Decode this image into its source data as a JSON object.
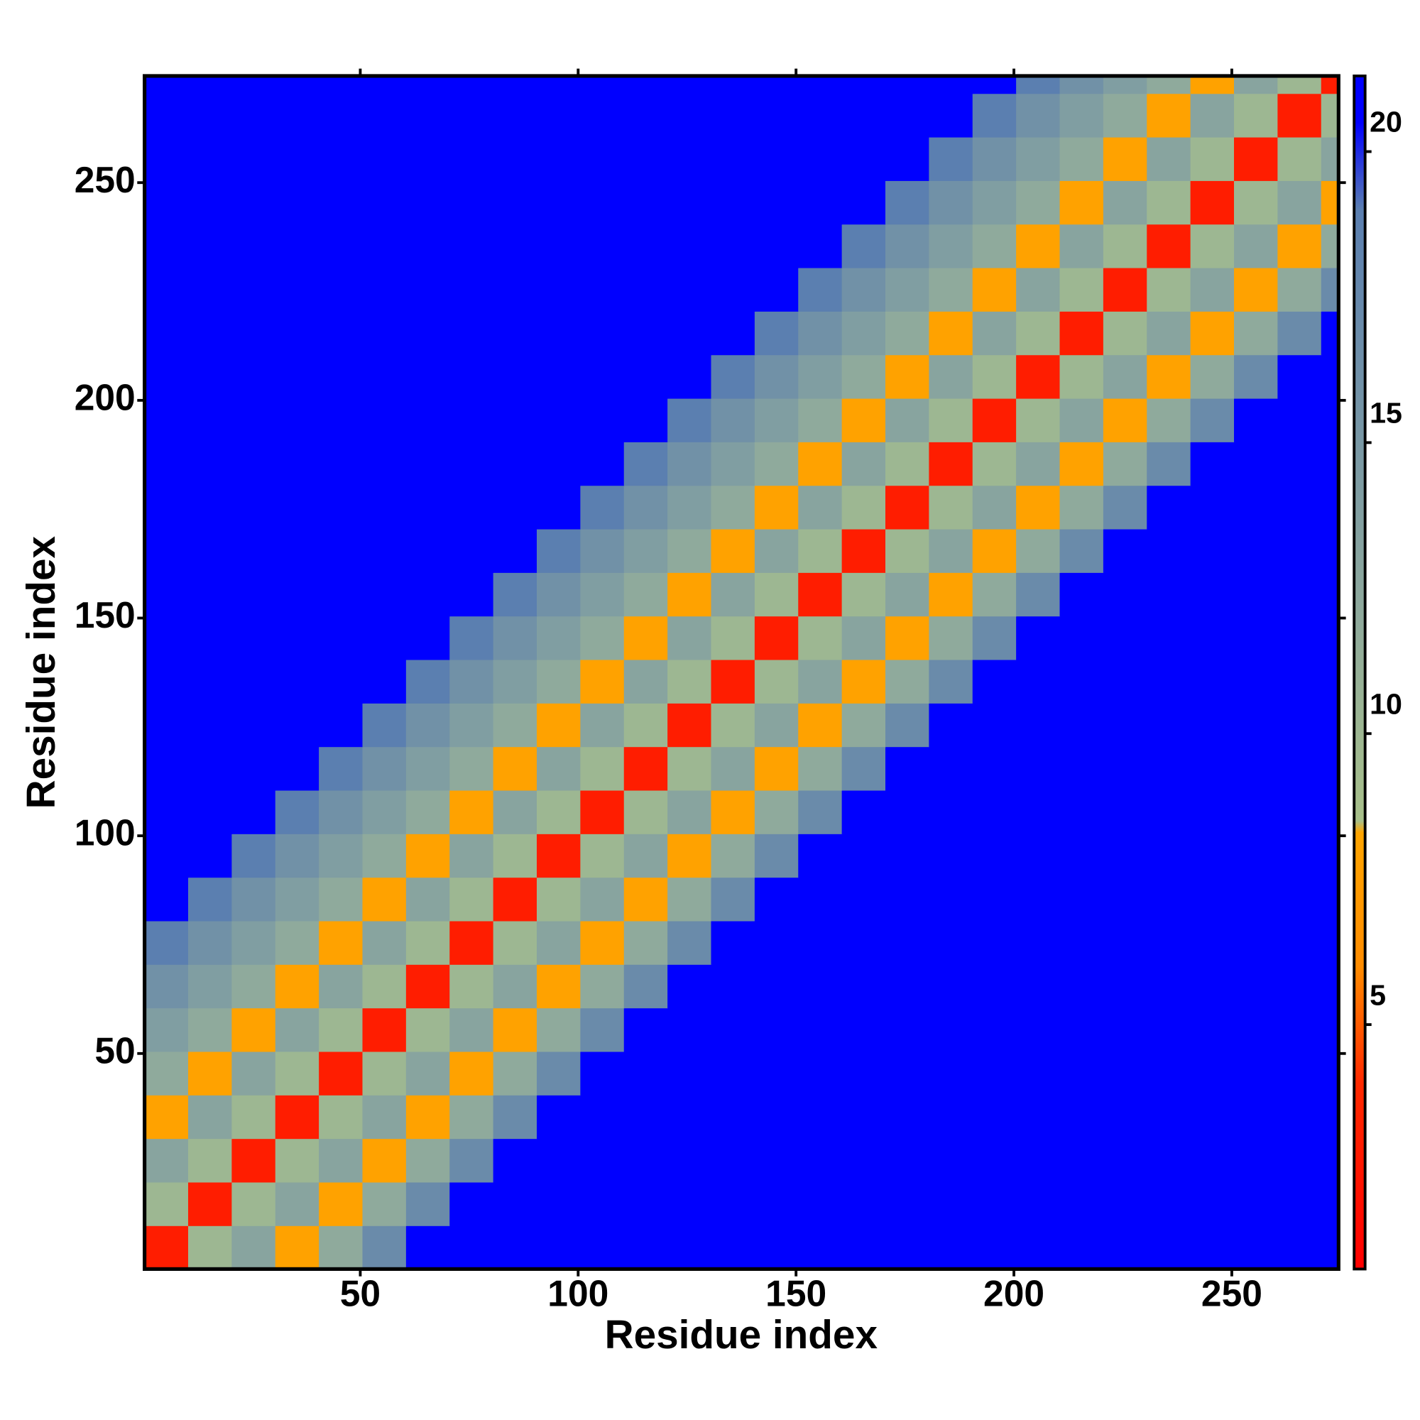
{
  "chart_data": {
    "type": "heatmap",
    "x_label": "Residue index",
    "y_label": "Residue index",
    "x_edges": [
      0.5,
      10.5,
      20.5,
      30.5,
      40.5,
      50.5,
      60.5,
      70.5,
      80.5,
      90.5,
      100.5,
      110.5,
      120.5,
      130.5,
      140.5,
      150.5,
      160.5,
      170.5,
      180.5,
      190.5,
      200.5,
      210.5,
      220.5,
      230.5,
      240.5,
      250.5,
      260.5,
      270.5,
      274.5
    ],
    "y_edges": [
      0.5,
      10.5,
      20.5,
      30.5,
      40.5,
      50.5,
      60.5,
      70.5,
      80.5,
      90.5,
      100.5,
      110.5,
      120.5,
      130.5,
      140.5,
      150.5,
      160.5,
      170.5,
      180.5,
      190.5,
      200.5,
      210.5,
      220.5,
      230.5,
      240.5,
      250.5,
      260.5,
      270.5,
      274.5
    ],
    "xlim": [
      0.5,
      274.5
    ],
    "ylim": [
      0.5,
      274.5
    ],
    "xticks": [
      50,
      100,
      150,
      200,
      250
    ],
    "yticks": [
      50,
      100,
      150,
      200,
      250
    ],
    "zlim": [
      0.8,
      21.3
    ],
    "zticks": [
      5,
      10,
      15,
      20
    ],
    "colorscale": [
      [
        0.8,
        "#ff0000"
      ],
      [
        4,
        "#ff2a00"
      ],
      [
        6,
        "#ff8c00"
      ],
      [
        8.3,
        "#ffa500"
      ],
      [
        8.5,
        "#a8c08a"
      ],
      [
        12,
        "#8faa9c"
      ],
      [
        19,
        "#5b7fb0"
      ],
      [
        20.5,
        "#0000ff"
      ],
      [
        21.3,
        "#0000ff"
      ]
    ],
    "z": [
      [
        3,
        10,
        13,
        8,
        12,
        17,
        21,
        21,
        21,
        21,
        21,
        21,
        21,
        21,
        21,
        21,
        21,
        21,
        21,
        21,
        21,
        21,
        21,
        21,
        21,
        21,
        21,
        21
      ],
      [
        10,
        3,
        10,
        13,
        8,
        12,
        17,
        21,
        21,
        21,
        21,
        21,
        21,
        21,
        21,
        21,
        21,
        21,
        21,
        21,
        21,
        21,
        21,
        21,
        21,
        21,
        21,
        21
      ],
      [
        13,
        10,
        3,
        10,
        13,
        8,
        12,
        17,
        21,
        21,
        21,
        21,
        21,
        21,
        21,
        21,
        21,
        21,
        21,
        21,
        21,
        21,
        21,
        21,
        21,
        21,
        21,
        21
      ],
      [
        8,
        13,
        10,
        3,
        10,
        13,
        8,
        12,
        17,
        21,
        21,
        21,
        21,
        21,
        21,
        21,
        21,
        21,
        21,
        21,
        21,
        21,
        21,
        21,
        21,
        21,
        21,
        21
      ],
      [
        12,
        8,
        13,
        10,
        3,
        10,
        13,
        8,
        12,
        17,
        21,
        21,
        21,
        21,
        21,
        21,
        21,
        21,
        21,
        21,
        21,
        21,
        21,
        21,
        21,
        21,
        21,
        21
      ],
      [
        14,
        12,
        8,
        13,
        10,
        3,
        10,
        13,
        8,
        12,
        17,
        21,
        21,
        21,
        21,
        21,
        21,
        21,
        21,
        21,
        21,
        21,
        21,
        21,
        21,
        21,
        21,
        21
      ],
      [
        16,
        14,
        12,
        8,
        13,
        10,
        3,
        10,
        13,
        8,
        12,
        17,
        21,
        21,
        21,
        21,
        21,
        21,
        21,
        21,
        21,
        21,
        21,
        21,
        21,
        21,
        21,
        21
      ],
      [
        19,
        16,
        14,
        12,
        8,
        13,
        10,
        3,
        10,
        13,
        8,
        12,
        17,
        21,
        21,
        21,
        21,
        21,
        21,
        21,
        21,
        21,
        21,
        21,
        21,
        21,
        21,
        21
      ],
      [
        21,
        19,
        16,
        14,
        12,
        8,
        13,
        10,
        3,
        10,
        13,
        8,
        12,
        17,
        21,
        21,
        21,
        21,
        21,
        21,
        21,
        21,
        21,
        21,
        21,
        21,
        21,
        21
      ],
      [
        21,
        21,
        19,
        16,
        14,
        12,
        8,
        13,
        10,
        3,
        10,
        13,
        8,
        12,
        17,
        21,
        21,
        21,
        21,
        21,
        21,
        21,
        21,
        21,
        21,
        21,
        21,
        21
      ],
      [
        21,
        21,
        21,
        19,
        16,
        14,
        12,
        8,
        13,
        10,
        3,
        10,
        13,
        8,
        12,
        17,
        21,
        21,
        21,
        21,
        21,
        21,
        21,
        21,
        21,
        21,
        21,
        21
      ],
      [
        21,
        21,
        21,
        21,
        19,
        16,
        14,
        12,
        8,
        13,
        10,
        3,
        10,
        13,
        8,
        12,
        17,
        21,
        21,
        21,
        21,
        21,
        21,
        21,
        21,
        21,
        21,
        21
      ],
      [
        21,
        21,
        21,
        21,
        21,
        19,
        16,
        14,
        12,
        8,
        13,
        10,
        3,
        10,
        13,
        8,
        12,
        17,
        21,
        21,
        21,
        21,
        21,
        21,
        21,
        21,
        21,
        21
      ],
      [
        21,
        21,
        21,
        21,
        21,
        21,
        19,
        16,
        14,
        12,
        8,
        13,
        10,
        3,
        10,
        13,
        8,
        12,
        17,
        21,
        21,
        21,
        21,
        21,
        21,
        21,
        21,
        21
      ],
      [
        21,
        21,
        21,
        21,
        21,
        21,
        21,
        19,
        16,
        14,
        12,
        8,
        13,
        10,
        3,
        10,
        13,
        8,
        12,
        17,
        21,
        21,
        21,
        21,
        21,
        21,
        21,
        21
      ],
      [
        21,
        21,
        21,
        21,
        21,
        21,
        21,
        21,
        19,
        16,
        14,
        12,
        8,
        13,
        10,
        3,
        10,
        13,
        8,
        12,
        17,
        21,
        21,
        21,
        21,
        21,
        21,
        21
      ],
      [
        21,
        21,
        21,
        21,
        21,
        21,
        21,
        21,
        21,
        19,
        16,
        14,
        12,
        8,
        13,
        10,
        3,
        10,
        13,
        8,
        12,
        17,
        21,
        21,
        21,
        21,
        21,
        21
      ],
      [
        21,
        21,
        21,
        21,
        21,
        21,
        21,
        21,
        21,
        21,
        19,
        16,
        14,
        12,
        8,
        13,
        10,
        3,
        10,
        13,
        8,
        12,
        17,
        21,
        21,
        21,
        21,
        21
      ],
      [
        21,
        21,
        21,
        21,
        21,
        21,
        21,
        21,
        21,
        21,
        21,
        19,
        16,
        14,
        12,
        8,
        13,
        10,
        3,
        10,
        13,
        8,
        12,
        17,
        21,
        21,
        21,
        21
      ],
      [
        21,
        21,
        21,
        21,
        21,
        21,
        21,
        21,
        21,
        21,
        21,
        21,
        19,
        16,
        14,
        12,
        8,
        13,
        10,
        3,
        10,
        13,
        8,
        12,
        17,
        21,
        21,
        21
      ],
      [
        21,
        21,
        21,
        21,
        21,
        21,
        21,
        21,
        21,
        21,
        21,
        21,
        21,
        19,
        16,
        14,
        12,
        8,
        13,
        10,
        3,
        10,
        13,
        8,
        12,
        17,
        21,
        21
      ],
      [
        21,
        21,
        21,
        21,
        21,
        21,
        21,
        21,
        21,
        21,
        21,
        21,
        21,
        21,
        19,
        16,
        14,
        12,
        8,
        13,
        10,
        3,
        10,
        13,
        8,
        12,
        17,
        21
      ],
      [
        21,
        21,
        21,
        21,
        21,
        21,
        21,
        21,
        21,
        21,
        21,
        21,
        21,
        21,
        21,
        19,
        16,
        14,
        12,
        8,
        13,
        10,
        3,
        10,
        13,
        8,
        12,
        17
      ],
      [
        21,
        21,
        21,
        21,
        21,
        21,
        21,
        21,
        21,
        21,
        21,
        21,
        21,
        21,
        21,
        21,
        19,
        16,
        14,
        12,
        8,
        13,
        10,
        3,
        10,
        13,
        8,
        12
      ],
      [
        21,
        21,
        21,
        21,
        21,
        21,
        21,
        21,
        21,
        21,
        21,
        21,
        21,
        21,
        21,
        21,
        21,
        19,
        16,
        14,
        12,
        8,
        13,
        10,
        3,
        10,
        13,
        8
      ],
      [
        21,
        21,
        21,
        21,
        21,
        21,
        21,
        21,
        21,
        21,
        21,
        21,
        21,
        21,
        21,
        21,
        21,
        21,
        19,
        16,
        14,
        12,
        8,
        13,
        10,
        3,
        10,
        13
      ],
      [
        21,
        21,
        21,
        21,
        21,
        21,
        21,
        21,
        21,
        21,
        21,
        21,
        21,
        21,
        21,
        21,
        21,
        21,
        21,
        19,
        16,
        14,
        12,
        8,
        13,
        10,
        3,
        10
      ],
      [
        21,
        21,
        21,
        21,
        21,
        21,
        21,
        21,
        21,
        21,
        21,
        21,
        21,
        21,
        21,
        21,
        21,
        21,
        21,
        21,
        19,
        16,
        14,
        12,
        8,
        13,
        10,
        3
      ]
    ]
  }
}
